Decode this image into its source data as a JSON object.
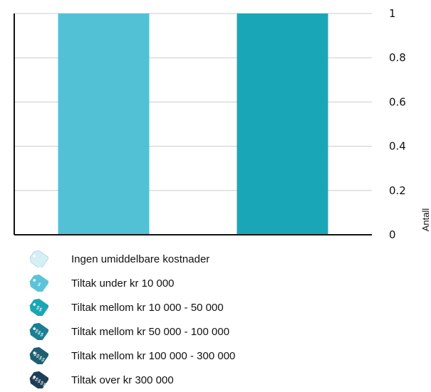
{
  "chart_data": {
    "type": "bar",
    "categories": [
      "",
      ""
    ],
    "values": [
      1,
      1
    ],
    "bar_colors": [
      "#52c1d6",
      "#19a7b8"
    ],
    "ylabel": "Antall",
    "ylim": [
      0,
      1
    ],
    "yticks": [
      "0",
      "0.2",
      "0.4",
      "0.6",
      "0.8",
      "1"
    ],
    "y_axis_side": "right",
    "grid": true,
    "gridline_color": "#cccccc",
    "legend_placement": "bottom"
  },
  "legend": {
    "items": [
      {
        "label": "Ingen umiddelbare kostnader",
        "icon": "price-tag-empty-icon",
        "color": "#d6eef5",
        "tag_text": ""
      },
      {
        "label": "Tiltak under kr 10 000",
        "icon": "price-tag-one-icon",
        "color": "#5cc3d8",
        "tag_text": "$"
      },
      {
        "label": "Tiltak mellom kr 10 000 - 50 000",
        "icon": "price-tag-two-icon",
        "color": "#1ba6b4",
        "tag_text": "$$"
      },
      {
        "label": "Tiltak mellom kr 50 000 - 100 000",
        "icon": "price-tag-three-icon",
        "color": "#1a7f93",
        "tag_text": "$$$"
      },
      {
        "label": "Tiltak mellom kr 100 000 - 300 000",
        "icon": "price-tag-four-icon",
        "color": "#1e5f72",
        "tag_text": "$$$$"
      },
      {
        "label": "Tiltak over kr 300 000",
        "icon": "price-tag-five-icon",
        "color": "#1c3e57",
        "tag_text": "$$$$$"
      }
    ]
  }
}
